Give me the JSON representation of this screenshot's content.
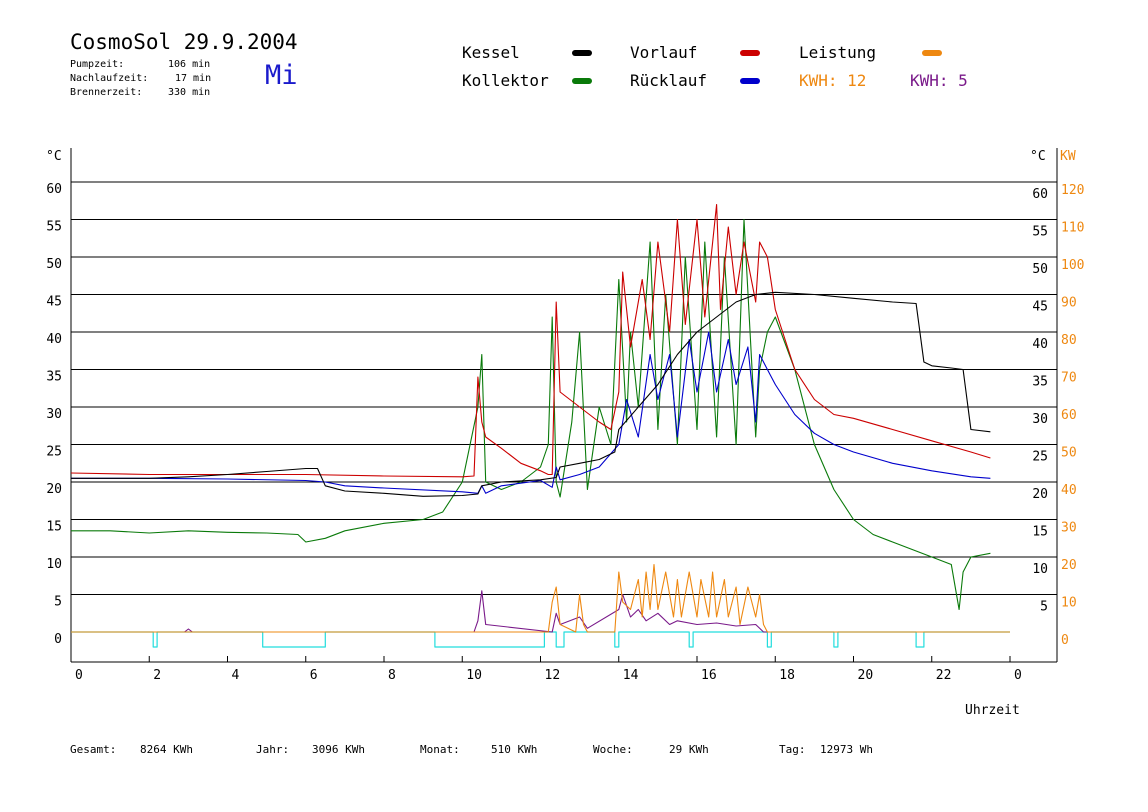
{
  "header": {
    "title": "CosmoSol 29.9.2004",
    "weekday": "Mi",
    "stats": [
      {
        "label": "Pumpzeit:",
        "value": "106 min"
      },
      {
        "label": "Nachlaufzeit:",
        "value": "17 min"
      },
      {
        "label": "Brennerzeit:",
        "value": "330 min"
      }
    ]
  },
  "legend": {
    "kessel": "Kessel",
    "kollektor": "Kollektor",
    "vorlauf": "Vorlauf",
    "ruecklauf": "Rücklauf",
    "leistung": "Leistung",
    "kwh_orange": "KWH: 12",
    "kwh_purple": "KWH: 5"
  },
  "colors": {
    "kessel": "#000000",
    "kollektor": "#0a7a0a",
    "vorlauf": "#cc0000",
    "ruecklauf": "#0000cc",
    "leistung": "#ee8811",
    "purple": "#7a1a8a",
    "pump": "#22dddd"
  },
  "footer": [
    {
      "label": "Gesamt:",
      "value": "8264 KWh"
    },
    {
      "label": "Jahr:",
      "value": "3096 KWh"
    },
    {
      "label": "Monat:",
      "value": "510 KWh"
    },
    {
      "label": "Woche:",
      "value": "29 KWh"
    },
    {
      "label": "Tag:",
      "value": "12973 Wh"
    }
  ],
  "chart_data": {
    "type": "line",
    "xlabel": "Uhrzeit",
    "x_ticks": [
      "0",
      "2",
      "4",
      "6",
      "8",
      "10",
      "12",
      "14",
      "16",
      "18",
      "20",
      "22",
      "0"
    ],
    "left_unit": "°C",
    "right_unit_temp": "°C",
    "right_unit_power": "KW",
    "y_left_ticks": [
      0,
      5,
      10,
      15,
      20,
      25,
      30,
      35,
      40,
      45,
      50,
      55,
      60
    ],
    "y_right_temp_ticks": [
      5,
      10,
      15,
      20,
      25,
      30,
      35,
      40,
      45,
      50,
      55,
      60
    ],
    "y_right_power_ticks": [
      0,
      10,
      20,
      30,
      40,
      50,
      60,
      70,
      80,
      90,
      100,
      110,
      120
    ],
    "xlim": [
      0,
      24
    ],
    "ylim": [
      0,
      60
    ],
    "grid": true,
    "series": [
      {
        "name": "Kessel",
        "key": "kessel",
        "x": [
          0,
          2,
          3,
          4,
          5,
          6,
          6.3,
          6.5,
          7,
          8,
          9,
          10,
          10.4,
          10.5,
          11,
          12,
          12.4,
          12.5,
          13,
          13.5,
          13.9,
          14,
          14.5,
          15,
          15.5,
          16,
          16.5,
          17,
          17.5,
          18,
          19,
          20,
          21,
          21.6,
          21.8,
          22,
          22.5,
          22.8,
          23,
          23.5
        ],
        "y": [
          20.5,
          20.5,
          20.7,
          21,
          21.4,
          21.8,
          21.8,
          19.5,
          18.8,
          18.5,
          18.1,
          18.2,
          18.4,
          19.5,
          20,
          20.3,
          20.6,
          22,
          22.5,
          23,
          24,
          27,
          30,
          33,
          37,
          40,
          42,
          44,
          45,
          45.3,
          45,
          44.5,
          44,
          43.8,
          36,
          35.5,
          35.2,
          35,
          27,
          26.7
        ]
      },
      {
        "name": "Vorlauf",
        "key": "vorlauf",
        "x": [
          0,
          2,
          4,
          6,
          8,
          10,
          10.3,
          10.4,
          10.5,
          10.6,
          11,
          11.5,
          12,
          12.2,
          12.3,
          12.4,
          12.5,
          13,
          13.5,
          13.8,
          14,
          14.1,
          14.3,
          14.5,
          14.6,
          14.8,
          15,
          15.3,
          15.5,
          15.7,
          16,
          16.2,
          16.5,
          16.6,
          16.8,
          17,
          17.2,
          17.5,
          17.6,
          17.8,
          18,
          18.5,
          19,
          19.5,
          20,
          21,
          22,
          23,
          23.5
        ],
        "y": [
          21.2,
          21,
          21,
          21,
          20.8,
          20.7,
          20.8,
          34,
          28,
          26,
          24.5,
          22.5,
          21.5,
          21,
          21,
          44,
          32,
          30,
          28,
          27,
          32,
          48,
          38,
          44,
          47,
          39,
          52,
          40,
          55,
          41,
          55,
          42,
          57,
          43,
          54,
          45,
          52,
          44,
          52,
          50,
          43,
          35,
          31,
          29,
          28.5,
          27,
          25.5,
          24,
          23.2
        ]
      },
      {
        "name": "Rücklauf",
        "key": "ruecklauf",
        "x": [
          0,
          2,
          4,
          6,
          6.5,
          7,
          8,
          10,
          10.4,
          10.5,
          10.6,
          11,
          12,
          12.3,
          12.4,
          12.5,
          13,
          13.5,
          14,
          14.2,
          14.5,
          14.8,
          15,
          15.3,
          15.5,
          15.8,
          16,
          16.3,
          16.5,
          16.8,
          17,
          17.3,
          17.5,
          17.6,
          17.8,
          18,
          18.5,
          19,
          19.5,
          20,
          21,
          22,
          23,
          23.5
        ],
        "y": [
          20.5,
          20.5,
          20.4,
          20.2,
          20.0,
          19.5,
          19.2,
          18.7,
          18.5,
          19.5,
          18.5,
          19.5,
          20.2,
          19.3,
          22,
          20.3,
          21,
          22,
          25,
          31,
          26,
          37,
          31,
          37,
          26,
          39,
          32,
          40,
          32,
          39,
          33,
          38,
          28,
          37,
          35,
          33,
          29,
          26.5,
          25,
          24,
          22.5,
          21.5,
          20.7,
          20.5
        ]
      },
      {
        "name": "Kollektor",
        "key": "kollektor",
        "x": [
          0,
          1,
          2,
          3,
          4,
          5,
          5.8,
          6,
          6.5,
          7,
          8,
          9,
          9.5,
          10,
          10.2,
          10.4,
          10.5,
          10.6,
          11,
          11.5,
          12,
          12.2,
          12.3,
          12.4,
          12.5,
          12.8,
          13,
          13.2,
          13.5,
          13.8,
          14,
          14.2,
          14.3,
          14.5,
          14.8,
          15,
          15.2,
          15.5,
          15.7,
          16,
          16.2,
          16.5,
          16.7,
          17,
          17.2,
          17.5,
          17.6,
          17.8,
          18,
          18.5,
          19,
          19.5,
          20,
          20.5,
          21,
          22,
          22.5,
          22.7,
          22.8,
          23,
          23.5
        ],
        "y": [
          13.5,
          13.5,
          13.2,
          13.5,
          13.3,
          13.2,
          13,
          12,
          12.5,
          13.5,
          14.5,
          15,
          16,
          20,
          25,
          30,
          37,
          20,
          19,
          20,
          22,
          25,
          42,
          20,
          18,
          28,
          40,
          19,
          30,
          25,
          47,
          28,
          40,
          30,
          52,
          27,
          45,
          25,
          50,
          27,
          52,
          26,
          50,
          25,
          55,
          26,
          35,
          40,
          42,
          35,
          25,
          19,
          15,
          13,
          12,
          10,
          9,
          3,
          8,
          10,
          10.5
        ]
      },
      {
        "name": "Leistung",
        "key": "leistung",
        "x": [
          0,
          12.1,
          12.2,
          12.3,
          12.4,
          12.5,
          12.9,
          13,
          13.1,
          13.2,
          13.9,
          14,
          14.1,
          14.3,
          14.5,
          14.6,
          14.7,
          14.8,
          14.9,
          15,
          15.2,
          15.4,
          15.5,
          15.6,
          15.8,
          16,
          16.1,
          16.3,
          16.4,
          16.5,
          16.7,
          16.8,
          17,
          17.1,
          17.3,
          17.5,
          17.6,
          17.7,
          17.8,
          24
        ],
        "y": [
          0,
          0,
          0,
          4,
          6,
          1,
          0,
          5,
          1,
          0,
          0,
          8,
          4,
          3,
          7,
          2,
          8,
          3,
          9,
          3,
          8,
          2,
          7,
          2,
          8,
          2,
          7,
          2,
          8,
          2,
          7,
          2,
          6,
          1,
          6,
          2,
          5,
          1,
          0,
          0
        ]
      },
      {
        "name": "Leistung2",
        "key": "purple",
        "x": [
          0,
          2.9,
          3.0,
          3.1,
          10.3,
          10.4,
          10.5,
          10.6,
          12.3,
          12.4,
          12.5,
          13,
          13.2,
          14,
          14.1,
          14.3,
          14.5,
          14.7,
          15,
          15.3,
          15.5,
          16,
          16.5,
          17,
          17.5,
          17.7,
          24
        ],
        "y": [
          0,
          0,
          0.4,
          0,
          0,
          1.5,
          5.5,
          1,
          0,
          2.5,
          1,
          2,
          0.5,
          3,
          5,
          2,
          3,
          1.5,
          2.5,
          1,
          1.5,
          1,
          1.2,
          0.8,
          1,
          0,
          0
        ]
      },
      {
        "name": "Pumpe",
        "key": "pump",
        "x": [
          0,
          2.1,
          2.1,
          2.2,
          2.2,
          4.9,
          4.9,
          6.5,
          6.5,
          9.3,
          9.3,
          12.1,
          12.1,
          12.4,
          12.4,
          12.6,
          12.6,
          13.9,
          13.9,
          14.0,
          14.0,
          15.8,
          15.8,
          15.9,
          15.9,
          17.8,
          17.8,
          17.9,
          17.9,
          19.5,
          19.5,
          19.6,
          19.6,
          21.6,
          21.6,
          21.8,
          21.8,
          24
        ],
        "y": [
          0,
          0,
          -2,
          -2,
          0,
          0,
          -2,
          -2,
          0,
          0,
          -2,
          -2,
          0,
          0,
          -2,
          -2,
          0,
          0,
          -2,
          -2,
          0,
          0,
          -2,
          -2,
          0,
          0,
          -2,
          -2,
          0,
          0,
          -2,
          -2,
          0,
          0,
          -2,
          -2,
          0,
          0
        ]
      }
    ]
  }
}
